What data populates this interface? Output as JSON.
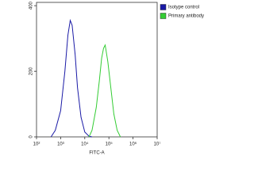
{
  "chart_data": {
    "type": "line",
    "x_label": "FITC-A",
    "log_x": true,
    "x": [
      400,
      600,
      1000,
      1500,
      2000,
      2500,
      3000,
      4000,
      5000,
      7000,
      10000,
      15000,
      20000,
      30000,
      40000,
      50000,
      60000,
      70000,
      90000,
      120000,
      160000,
      220000,
      300000
    ],
    "series": [
      {
        "name": "Isotype control",
        "color": "#1a1aa6",
        "values": [
          0,
          20,
          80,
          200,
          310,
          355,
          340,
          250,
          150,
          60,
          15,
          2,
          0,
          null,
          null,
          null,
          null,
          null,
          null,
          null,
          null,
          null,
          null
        ]
      },
      {
        "name": "Primary antibody",
        "color": "#33cc33",
        "values": [
          null,
          null,
          null,
          null,
          null,
          null,
          null,
          null,
          null,
          null,
          null,
          0,
          20,
          90,
          170,
          240,
          270,
          280,
          230,
          150,
          70,
          20,
          0
        ]
      }
    ],
    "xlim": [
      100,
      10000000
    ],
    "xticks": [
      {
        "value": 100,
        "label": "10²"
      },
      {
        "value": 1000,
        "label": "10³"
      },
      {
        "value": 10000,
        "label": "10⁴"
      },
      {
        "value": 100000,
        "label": "10⁵"
      },
      {
        "value": 1000000,
        "label": "10⁶"
      },
      {
        "value": 10000000,
        "label": "10⁷"
      }
    ],
    "ylim": [
      0,
      410
    ],
    "yticks": [
      0,
      200,
      400
    ],
    "legend": "top-right"
  }
}
